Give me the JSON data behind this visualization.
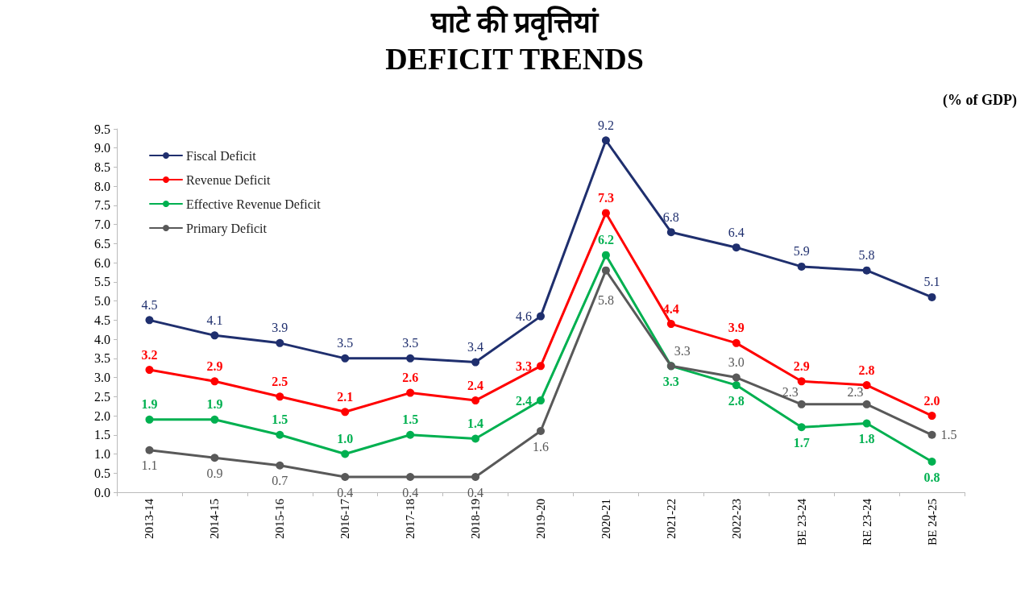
{
  "chart_data": {
    "type": "line",
    "title": "घाटे की प्रवृत्तियां",
    "subtitle": "DEFICIT TRENDS",
    "annotations": [
      "(% of GDP)"
    ],
    "categories": [
      "2013-14",
      "2014-15",
      "2015-16",
      "2016-17",
      "2017-18",
      "2018-19",
      "2019-20",
      "2020-21",
      "2021-22",
      "2022-23",
      "BE 23-24",
      "RE 23-24",
      "BE 24-25"
    ],
    "series": [
      {
        "name": "Fiscal Deficit",
        "color": "#1f2f6e",
        "values": [
          4.5,
          4.1,
          3.9,
          3.5,
          3.5,
          3.4,
          4.6,
          9.2,
          6.8,
          6.4,
          5.9,
          5.8,
          5.1
        ],
        "value_labels": [
          "4.5",
          "4.1",
          "3.9",
          "3.5",
          "3.5",
          "3.4",
          "4.6",
          "9.2",
          "6.8",
          "6.4",
          "5.9",
          "5.8",
          "5.1"
        ]
      },
      {
        "name": "Revenue Deficit",
        "color": "#ff0000",
        "values": [
          3.2,
          2.9,
          2.5,
          2.1,
          2.6,
          2.4,
          3.3,
          7.3,
          4.4,
          3.9,
          2.9,
          2.8,
          2.0
        ],
        "value_labels": [
          "3.2",
          "2.9",
          "2.5",
          "2.1",
          "2.6",
          "2.4",
          "3.3",
          "7.3",
          "4.4",
          "3.9",
          "2.9",
          "2.8",
          "2.0"
        ]
      },
      {
        "name": "Effective Revenue Deficit",
        "color": "#00b050",
        "values": [
          1.9,
          1.9,
          1.5,
          1.0,
          1.5,
          1.4,
          2.4,
          6.2,
          3.3,
          2.8,
          1.7,
          1.8,
          0.8
        ],
        "value_labels": [
          "1.9",
          "1.9",
          "1.5",
          "1.0",
          "1.5",
          "1.4",
          "2.4",
          "6.2",
          "3.3",
          "2.8",
          "1.7",
          "1.8",
          "0.8"
        ]
      },
      {
        "name": "Primary Deficit",
        "color": "#595959",
        "values": [
          1.1,
          0.9,
          0.7,
          0.4,
          0.4,
          0.4,
          1.6,
          5.8,
          3.3,
          3.0,
          2.3,
          2.3,
          1.5
        ],
        "value_labels": [
          "1.1",
          "0.9",
          "0.7",
          "0.4",
          "0.4",
          "0.4",
          "1.6",
          "5.8",
          "3.3",
          "3.0",
          "2.3",
          "2.3",
          "1.5"
        ]
      }
    ],
    "ylim": [
      0,
      9.5
    ],
    "yticks": [
      {
        "value": 0,
        "label": "0.0"
      },
      0.5,
      {
        "value": 1,
        "label": "1.0"
      },
      1.5,
      {
        "value": 2,
        "label": "2.0"
      },
      2.5,
      {
        "value": 3,
        "label": "3.0"
      },
      3.5,
      {
        "value": 4,
        "label": "4.0"
      },
      4.5,
      {
        "value": 5,
        "label": "5.0"
      },
      5.5,
      {
        "value": 6,
        "label": "6.0"
      },
      6.5,
      {
        "value": 7,
        "label": "7.0"
      },
      7.5,
      {
        "value": 8,
        "label": "8.0"
      },
      8.5,
      {
        "value": 9,
        "label": "9.0"
      },
      9.5
    ],
    "marker": "circle",
    "line_style": "solid",
    "grid": false,
    "legend": "top left"
  }
}
